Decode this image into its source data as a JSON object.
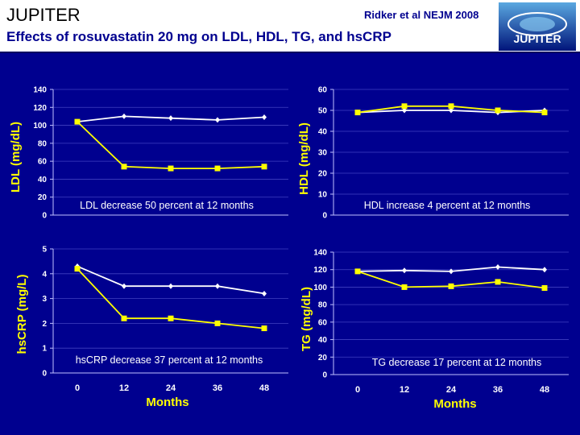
{
  "header": {
    "title": "JUPITER",
    "subtitle": "Effects of rosuvastatin 20 mg on LDL, HDL, TG, and hsCRP",
    "reference": "Ridker et al NEJM 2008",
    "logo_text": "JUPITER"
  },
  "colors": {
    "background": "#00008F",
    "placebo": "#FFFFFF",
    "rosuvastatin": "#FFFF00",
    "axis_text": "#FFFF00",
    "tick_text": "#FFFFFF",
    "gridline": "#4040C0"
  },
  "chart_data": [
    {
      "type": "line",
      "ylabel": "LDL  (mg/dL)",
      "annotation": "LDL decrease 50 percent at 12 months",
      "xlabel": "",
      "x": [
        0,
        12,
        24,
        36,
        48
      ],
      "ylim": [
        0,
        140
      ],
      "yticks": [
        0,
        20,
        40,
        60,
        80,
        100,
        120,
        140
      ],
      "xticks_shown": false,
      "series": [
        {
          "marker": "diamond",
          "color": "#FFFFFF",
          "values": [
            104,
            110,
            108,
            106,
            109
          ]
        },
        {
          "marker": "square",
          "color": "#FFFF00",
          "values": [
            104,
            54,
            52,
            52,
            54
          ]
        }
      ]
    },
    {
      "type": "line",
      "ylabel": "HDL  (mg/dL)",
      "annotation": "HDL increase 4 percent at 12 months",
      "xlabel": "",
      "x": [
        0,
        12,
        24,
        36,
        48
      ],
      "ylim": [
        0,
        60
      ],
      "yticks": [
        0,
        10,
        20,
        30,
        40,
        50,
        60
      ],
      "xticks_shown": false,
      "series": [
        {
          "marker": "diamond",
          "color": "#FFFFFF",
          "values": [
            49,
            50,
            50,
            49,
            50
          ]
        },
        {
          "marker": "square",
          "color": "#FFFF00",
          "values": [
            49,
            52,
            52,
            50,
            49
          ]
        }
      ]
    },
    {
      "type": "line",
      "ylabel": "hsCRP (mg/L)",
      "annotation": "hsCRP decrease 37 percent at 12 months",
      "xlabel": "Months",
      "x": [
        0,
        12,
        24,
        36,
        48
      ],
      "ylim": [
        0,
        5
      ],
      "yticks": [
        0,
        1,
        2,
        3,
        4,
        5
      ],
      "xticks_shown": true,
      "series": [
        {
          "marker": "diamond",
          "color": "#FFFFFF",
          "values": [
            4.3,
            3.5,
            3.5,
            3.5,
            3.2
          ]
        },
        {
          "marker": "square",
          "color": "#FFFF00",
          "values": [
            4.2,
            2.2,
            2.2,
            2.0,
            1.8
          ]
        }
      ]
    },
    {
      "type": "line",
      "ylabel": "TG  (mg/dL)",
      "annotation": "TG decrease 17 percent at 12 months",
      "xlabel": "Months",
      "x": [
        0,
        12,
        24,
        36,
        48
      ],
      "ylim": [
        0,
        140
      ],
      "yticks": [
        0,
        20,
        40,
        60,
        80,
        100,
        120,
        140
      ],
      "xticks_shown": true,
      "series": [
        {
          "marker": "diamond",
          "color": "#FFFFFF",
          "values": [
            118,
            119,
            118,
            123,
            120
          ]
        },
        {
          "marker": "square",
          "color": "#FFFF00",
          "values": [
            118,
            100,
            101,
            106,
            99
          ]
        }
      ]
    }
  ]
}
